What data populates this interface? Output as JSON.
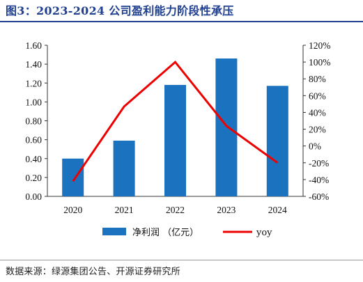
{
  "title": "图3：2023-2024 公司盈利能力阶段性承压",
  "source": "数据来源：绿源集团公告、开源证券研究所",
  "colors": {
    "bar": "#1b72bf",
    "line": "#ee0000",
    "title": "#1f3f8f"
  },
  "chart_data": {
    "type": "bar",
    "categories": [
      "2020",
      "2021",
      "2022",
      "2023",
      "2024"
    ],
    "series": [
      {
        "name": "净利润 （亿元）",
        "type": "bar",
        "axis": "left",
        "values": [
          0.4,
          0.59,
          1.18,
          1.46,
          1.17
        ]
      },
      {
        "name": "yoy",
        "type": "line",
        "axis": "right",
        "values": [
          -0.42,
          0.47,
          1.0,
          0.24,
          -0.2
        ]
      }
    ],
    "y_left": {
      "min": 0,
      "max": 1.6,
      "ticks": [
        "0.00",
        "0.20",
        "0.40",
        "0.60",
        "0.80",
        "1.00",
        "1.20",
        "1.40",
        "1.60"
      ]
    },
    "y_right": {
      "min": -0.6,
      "max": 1.2,
      "ticks": [
        "-60%",
        "-40%",
        "-20%",
        "0%",
        "20%",
        "40%",
        "60%",
        "80%",
        "100%",
        "120%"
      ]
    },
    "grid": false,
    "legend": "bottom"
  }
}
